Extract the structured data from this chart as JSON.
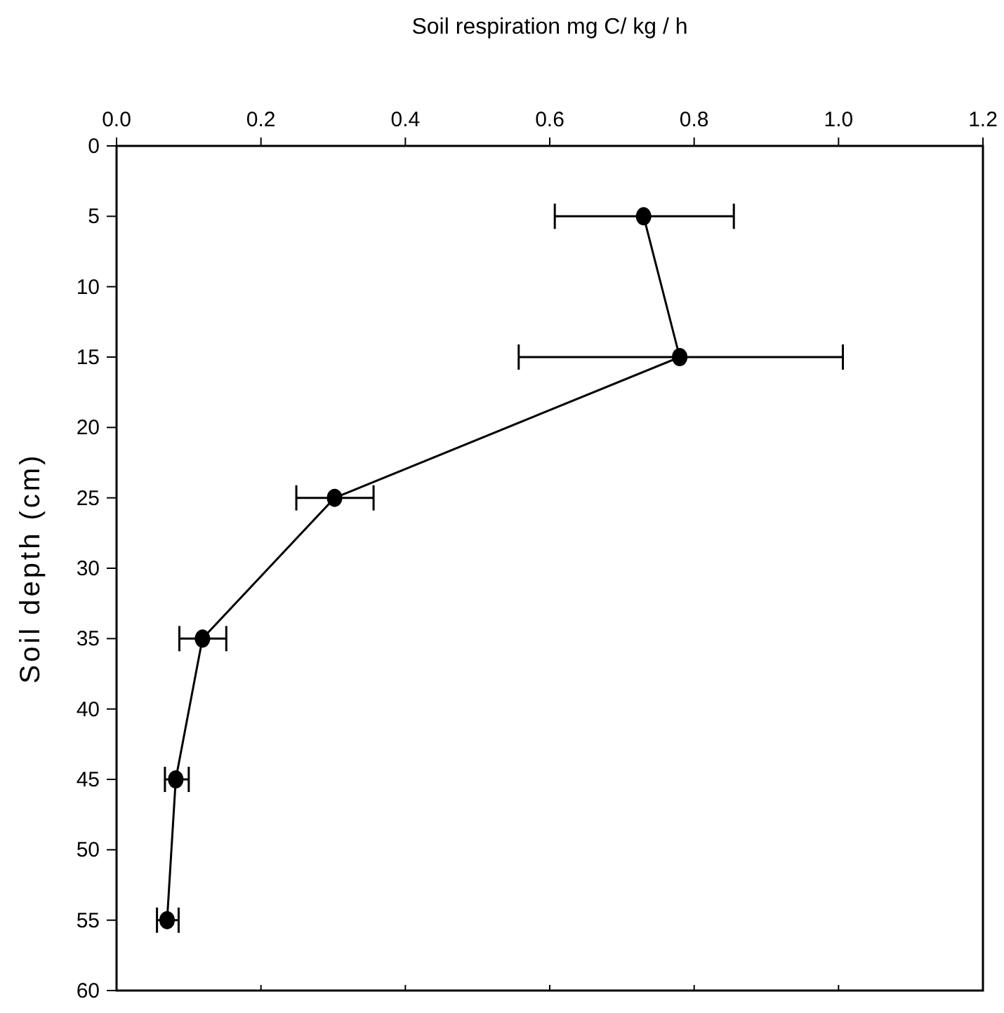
{
  "chart_data": {
    "type": "line",
    "xlabel": "Soil respiration mg C/ kg / h",
    "ylabel": "Soil depth (cm)",
    "x": [
      0.73,
      0.78,
      0.302,
      0.119,
      0.082,
      0.07
    ],
    "values": [
      5,
      15,
      25,
      35,
      45,
      55
    ],
    "xerrors": [
      [
        0.607,
        0.855
      ],
      [
        0.557,
        1.006
      ],
      [
        0.249,
        0.356
      ],
      [
        0.087,
        0.152
      ],
      [
        0.067,
        0.1
      ],
      [
        0.056,
        0.086
      ]
    ],
    "color": "#000000",
    "marker": "circle",
    "line_style": "solid",
    "xlim": [
      0,
      1.2
    ],
    "xticks": [
      {
        "value": 0,
        "label": "0.0"
      },
      {
        "value": 0.2,
        "label": "0.2"
      },
      {
        "value": 0.4,
        "label": "0.4"
      },
      {
        "value": 0.6,
        "label": "0.6"
      },
      {
        "value": 0.8,
        "label": "0.8"
      },
      {
        "value": 1,
        "label": "1.0"
      },
      {
        "value": 1.2,
        "label": "1.2"
      }
    ],
    "ylim": [
      60,
      0
    ],
    "yticks": [
      0,
      5,
      10,
      15,
      20,
      25,
      30,
      35,
      40,
      45,
      50,
      55,
      60
    ],
    "grid": false
  }
}
